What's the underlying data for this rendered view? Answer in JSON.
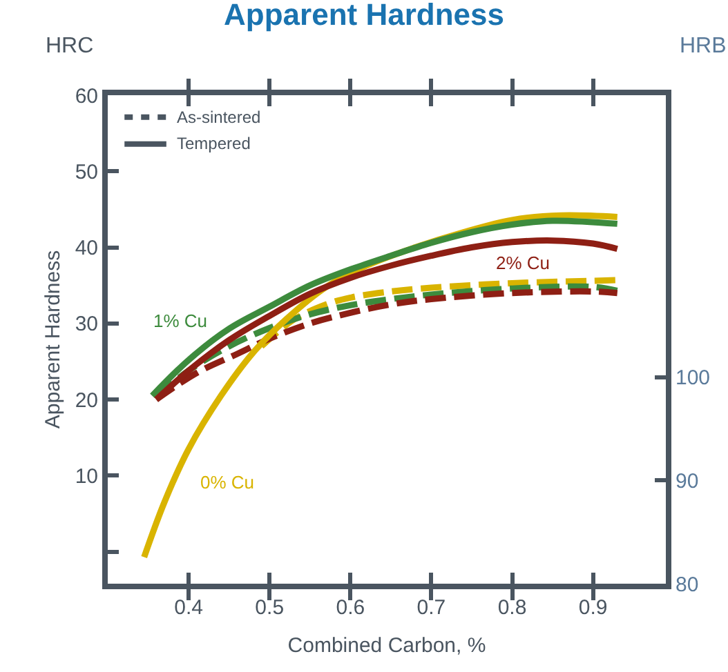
{
  "chart_data": {
    "type": "line",
    "title": "Apparent Hardness",
    "xlabel": "Combined Carbon, %",
    "ylabel": "Apparent Hardness",
    "y2label": "HRB",
    "xlim": [
      0.3,
      0.99
    ],
    "xticks": [
      0.4,
      0.5,
      0.6,
      0.7,
      0.8,
      0.9
    ],
    "ylim": [
      -4.2,
      60
    ],
    "yticks": [
      {
        "value": 0,
        "label": null
      },
      10,
      20,
      30,
      40,
      50,
      60
    ],
    "y2lim": [
      80,
      127.3
    ],
    "y2ticks": [
      80,
      90,
      100
    ],
    "marker": "none",
    "annotations": [
      "As-sintered",
      "Tempered",
      "HRC"
    ],
    "series": [
      {
        "color": "#d9b400",
        "line_style": "dashed",
        "x": [
          0.49,
          0.53,
          0.57,
          0.6,
          0.65,
          0.7,
          0.8,
          0.9,
          0.93
        ],
        "values": [
          27,
          30.5,
          32.5,
          33.4,
          34.2,
          34.7,
          35.3,
          35.6,
          35.7
        ]
      },
      {
        "color": "#3d8b3d",
        "line_style": "dashed",
        "x": [
          0.36,
          0.4,
          0.45,
          0.5,
          0.55,
          0.6,
          0.65,
          0.7,
          0.8,
          0.9,
          0.93
        ],
        "values": [
          20.5,
          23.8,
          27,
          29.4,
          31.2,
          32.4,
          33.2,
          33.8,
          34.6,
          34.8,
          34.3
        ]
      },
      {
        "color": "#8e1f14",
        "line_style": "dashed",
        "x": [
          0.36,
          0.41,
          0.46,
          0.5,
          0.55,
          0.6,
          0.65,
          0.7,
          0.8,
          0.9,
          0.93
        ],
        "values": [
          20,
          23.5,
          26,
          28,
          30,
          31.4,
          32.5,
          33.2,
          34,
          34.2,
          34
        ]
      },
      {
        "name": "0% Cu",
        "color": "#d9b400",
        "line_style": "solid",
        "x": [
          0.345,
          0.37,
          0.4,
          0.44,
          0.48,
          0.52,
          0.57,
          0.62,
          0.68,
          0.74,
          0.8,
          0.86,
          0.93
        ],
        "values": [
          -0.7,
          6.5,
          13.5,
          20.5,
          26.2,
          30.5,
          34.8,
          37.6,
          40,
          42,
          43.6,
          44.2,
          44
        ]
      },
      {
        "name": "1% Cu",
        "color": "#3d8b3d",
        "line_style": "solid",
        "x": [
          0.355,
          0.4,
          0.45,
          0.5,
          0.55,
          0.6,
          0.65,
          0.7,
          0.75,
          0.8,
          0.85,
          0.93
        ],
        "values": [
          20.5,
          25.2,
          29.3,
          32.2,
          35,
          37.1,
          38.9,
          40.6,
          42,
          43,
          43.5,
          43.1
        ]
      },
      {
        "name": "2% Cu",
        "color": "#8e1f14",
        "line_style": "solid",
        "x": [
          0.36,
          0.4,
          0.45,
          0.5,
          0.55,
          0.6,
          0.65,
          0.7,
          0.75,
          0.8,
          0.85,
          0.9,
          0.93
        ],
        "values": [
          20,
          23.8,
          27.8,
          31,
          33.9,
          36,
          37.6,
          38.9,
          40,
          40.7,
          40.9,
          40.5,
          39.8
        ]
      }
    ]
  }
}
